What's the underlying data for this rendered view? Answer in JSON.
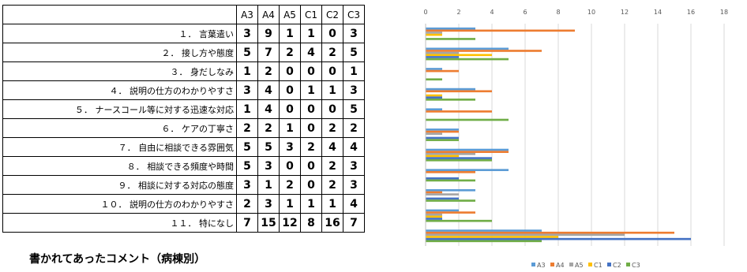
{
  "table": {
    "columns": [
      "A3",
      "A4",
      "A5",
      "C1",
      "C2",
      "C3"
    ],
    "rows": [
      {
        "label": "１． 言葉遣い",
        "values": [
          3,
          9,
          1,
          1,
          0,
          3
        ]
      },
      {
        "label": "２． 接し方や態度",
        "values": [
          5,
          7,
          2,
          4,
          2,
          5
        ]
      },
      {
        "label": "３． 身だしなみ",
        "values": [
          1,
          2,
          0,
          0,
          0,
          1
        ]
      },
      {
        "label": "４． 説明の仕方のわかりやすさ",
        "values": [
          3,
          4,
          0,
          1,
          1,
          3
        ]
      },
      {
        "label": "５． ナースコール等に対する迅速な対応",
        "values": [
          1,
          4,
          0,
          0,
          0,
          5
        ]
      },
      {
        "label": "６． ケアの丁寧さ",
        "values": [
          2,
          2,
          1,
          0,
          2,
          2
        ]
      },
      {
        "label": "７． 自由に相談できる雰囲気",
        "values": [
          5,
          5,
          3,
          2,
          4,
          4
        ]
      },
      {
        "label": "８． 相談できる頻度や時間",
        "values": [
          5,
          3,
          0,
          0,
          2,
          3
        ]
      },
      {
        "label": "９． 相談に対する対応の態度",
        "values": [
          3,
          1,
          2,
          0,
          2,
          3
        ]
      },
      {
        "label": "１０． 説明の仕方のわかりやすさ",
        "values": [
          2,
          3,
          1,
          1,
          1,
          4
        ]
      },
      {
        "label": "１１． 特になし",
        "values": [
          7,
          15,
          12,
          8,
          16,
          7
        ]
      }
    ]
  },
  "caption": "書かれてあったコメント（病棟別）",
  "chart_data": {
    "type": "bar",
    "orientation": "horizontal",
    "categories": [
      "１",
      "２",
      "３",
      "４",
      "５",
      "６",
      "７",
      "８",
      "９",
      "１０",
      "１１"
    ],
    "series": [
      {
        "name": "A3",
        "color": "#5b9bd5",
        "values": [
          3,
          5,
          1,
          3,
          1,
          2,
          5,
          5,
          3,
          2,
          7
        ]
      },
      {
        "name": "A4",
        "color": "#ed7d31",
        "values": [
          9,
          7,
          2,
          4,
          4,
          2,
          5,
          3,
          1,
          3,
          15
        ]
      },
      {
        "name": "A5",
        "color": "#a5a5a5",
        "values": [
          1,
          2,
          0,
          0,
          0,
          1,
          3,
          0,
          2,
          1,
          12
        ]
      },
      {
        "name": "C1",
        "color": "#ffc000",
        "values": [
          1,
          4,
          0,
          1,
          0,
          0,
          2,
          0,
          0,
          1,
          8
        ]
      },
      {
        "name": "C2",
        "color": "#4472c4",
        "values": [
          0,
          2,
          0,
          1,
          0,
          2,
          4,
          2,
          2,
          1,
          16
        ]
      },
      {
        "name": "C3",
        "color": "#70ad47",
        "values": [
          3,
          5,
          1,
          3,
          5,
          2,
          4,
          3,
          3,
          4,
          7
        ]
      }
    ],
    "x_ticks": [
      "0",
      "2",
      "4",
      "6",
      "8",
      "10",
      "12",
      "14",
      "16",
      "18"
    ],
    "xlim": [
      0,
      18
    ],
    "grid": true,
    "legend": "bottom"
  }
}
